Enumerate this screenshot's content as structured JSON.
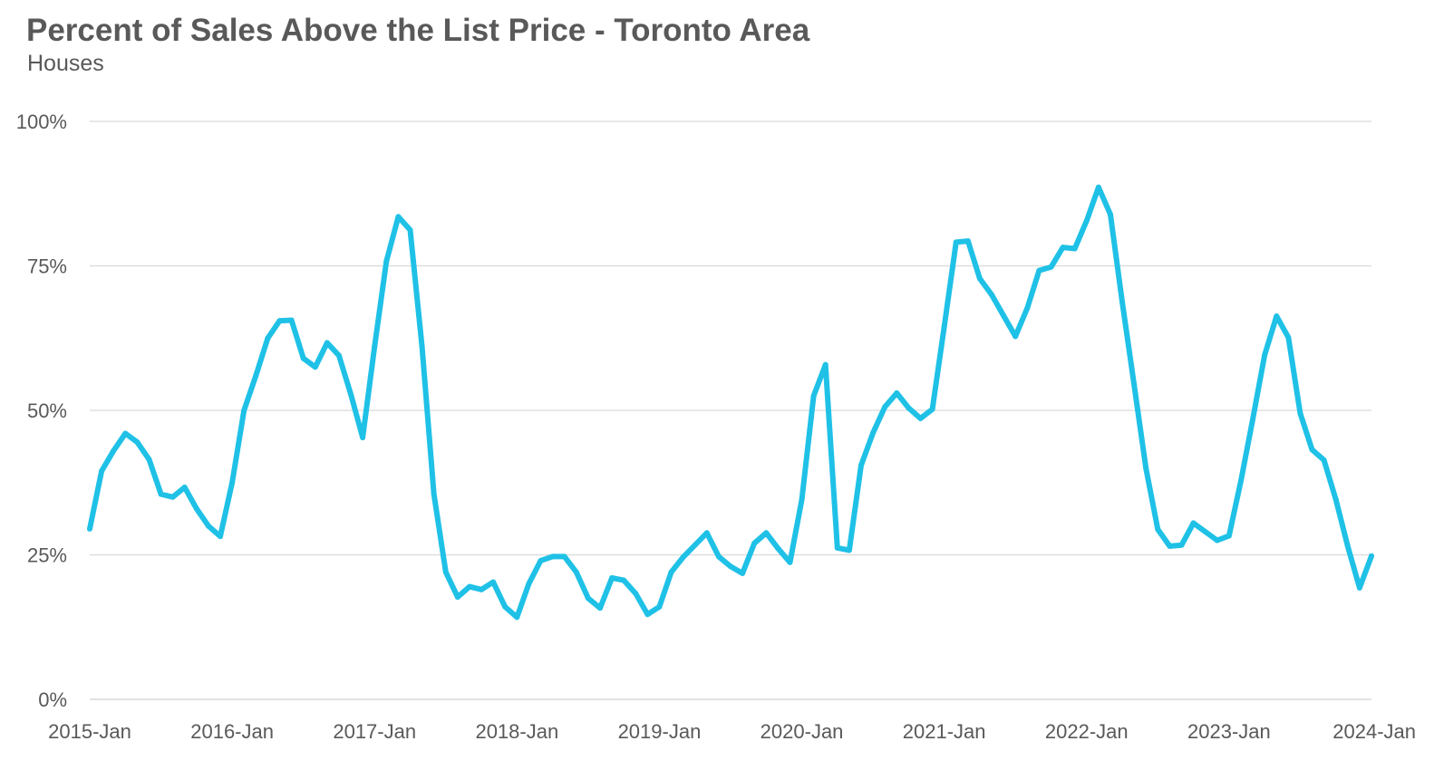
{
  "chart_data": {
    "type": "line",
    "title": "Percent of Sales Above the List Price - Toronto Area",
    "subtitle": "Houses",
    "xlabel": "",
    "ylabel": "",
    "ylim": [
      0,
      100
    ],
    "y_ticks": [
      {
        "value": 0,
        "label": "0%"
      },
      {
        "value": 25,
        "label": "25%"
      },
      {
        "value": 50,
        "label": "50%"
      },
      {
        "value": 75,
        "label": "75%"
      },
      {
        "value": 100,
        "label": "100%"
      }
    ],
    "x_range": [
      "2015-01",
      "2024-01"
    ],
    "x_ticks": [
      {
        "value": "2015-01",
        "label": "2015-Jan"
      },
      {
        "value": "2016-01",
        "label": "2016-Jan"
      },
      {
        "value": "2017-01",
        "label": "2017-Jan"
      },
      {
        "value": "2018-01",
        "label": "2018-Jan"
      },
      {
        "value": "2019-01",
        "label": "2019-Jan"
      },
      {
        "value": "2020-01",
        "label": "2020-Jan"
      },
      {
        "value": "2021-01",
        "label": "2021-Jan"
      },
      {
        "value": "2022-01",
        "label": "2022-Jan"
      },
      {
        "value": "2023-01",
        "label": "2023-Jan"
      },
      {
        "value": "2024-01",
        "label": "2024-Jan"
      }
    ],
    "grid": "horizontal",
    "legend": "none",
    "series_color": "#1FC1E6",
    "grid_color": "#D9D9D9",
    "series": [
      {
        "x": [
          "2015-01",
          "2015-02",
          "2015-03",
          "2015-04",
          "2015-05",
          "2015-06",
          "2015-07",
          "2015-08",
          "2015-09",
          "2015-10",
          "2015-11",
          "2015-12",
          "2016-01",
          "2016-02",
          "2016-03",
          "2016-04",
          "2016-05",
          "2016-06",
          "2016-07",
          "2016-08",
          "2016-09",
          "2016-10",
          "2016-11",
          "2016-12",
          "2017-01",
          "2017-02",
          "2017-03",
          "2017-04",
          "2017-05",
          "2017-06",
          "2017-07",
          "2017-08",
          "2017-09",
          "2017-10",
          "2017-11",
          "2017-12",
          "2018-01",
          "2018-02",
          "2018-03",
          "2018-04",
          "2018-05",
          "2018-06",
          "2018-07",
          "2018-08",
          "2018-09",
          "2018-10",
          "2018-11",
          "2018-12",
          "2019-01",
          "2019-02",
          "2019-03",
          "2019-04",
          "2019-05",
          "2019-06",
          "2019-07",
          "2019-08",
          "2019-09",
          "2019-10",
          "2019-11",
          "2019-12",
          "2020-01",
          "2020-02",
          "2020-03",
          "2020-04",
          "2020-05",
          "2020-06",
          "2020-07",
          "2020-08",
          "2020-09",
          "2020-10",
          "2020-11",
          "2020-12",
          "2021-01",
          "2021-02",
          "2021-03",
          "2021-04",
          "2021-05",
          "2021-06",
          "2021-07",
          "2021-08",
          "2021-09",
          "2021-10",
          "2021-11",
          "2021-12",
          "2022-01",
          "2022-02",
          "2022-03",
          "2022-04",
          "2022-05",
          "2022-06",
          "2022-07",
          "2022-08",
          "2022-09",
          "2022-10",
          "2022-11",
          "2022-12",
          "2023-01",
          "2023-02",
          "2023-03",
          "2023-04",
          "2023-05",
          "2023-06",
          "2023-07",
          "2023-08",
          "2023-09",
          "2023-10",
          "2023-11",
          "2023-12",
          "2024-01"
        ],
        "values": [
          29.5,
          39.5,
          43.0,
          46.0,
          44.5,
          41.5,
          35.5,
          35.0,
          36.7,
          33.0,
          30.0,
          28.2,
          37.5,
          50.0,
          56.0,
          62.5,
          65.5,
          65.6,
          59.0,
          57.5,
          61.7,
          59.5,
          52.8,
          45.3,
          61.0,
          75.8,
          83.5,
          81.2,
          61.0,
          35.5,
          22.0,
          17.7,
          19.5,
          19.0,
          20.3,
          16.0,
          14.2,
          20.0,
          24.0,
          24.7,
          24.7,
          22.0,
          17.5,
          15.8,
          21.0,
          20.6,
          18.3,
          14.7,
          16.0,
          22.0,
          24.6,
          26.7,
          28.8,
          24.7,
          23.0,
          21.8,
          27.0,
          28.8,
          26.1,
          23.7,
          34.6,
          52.5,
          57.9,
          26.2,
          25.8,
          40.5,
          46.1,
          50.6,
          53.0,
          50.4,
          48.6,
          50.2,
          64.5,
          79.1,
          79.3,
          72.8,
          70.0,
          66.4,
          62.8,
          67.7,
          74.2,
          74.8,
          78.2,
          78.0,
          82.8,
          88.6,
          83.9,
          68.7,
          54.5,
          40.0,
          29.4,
          26.5,
          26.7,
          30.5,
          29.0,
          27.5,
          28.3,
          37.8,
          48.5,
          59.6,
          66.3,
          62.6,
          49.5,
          43.2,
          41.4,
          34.6,
          26.5,
          19.3,
          24.8
        ]
      }
    ]
  }
}
